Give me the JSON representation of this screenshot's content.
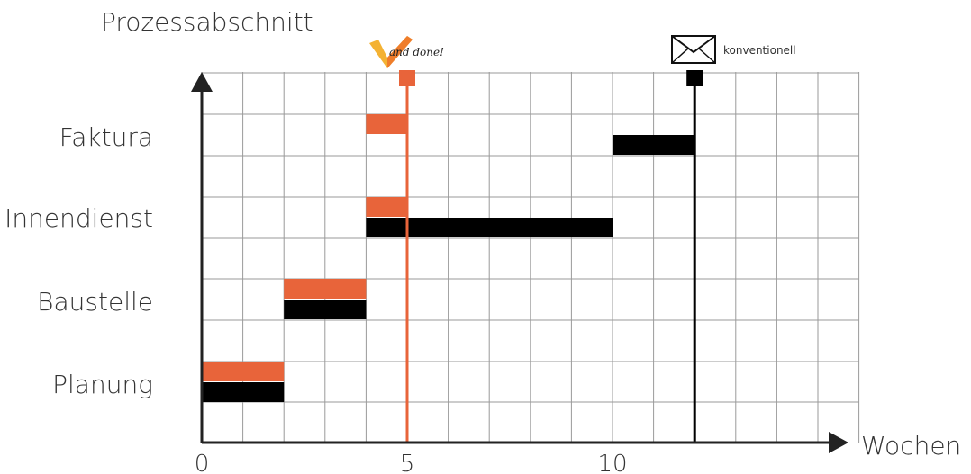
{
  "chart_data": {
    "type": "gantt",
    "y_axis_title": "Prozessabschnitt",
    "x_axis_title": "Wochen",
    "x_ticks": [
      0,
      5,
      10
    ],
    "xlim": [
      0,
      15
    ],
    "grid": true,
    "categories": [
      "Planung",
      "Baustelle",
      "Innendienst",
      "Faktura"
    ],
    "series": [
      {
        "color": "#e8643a",
        "tasks": [
          {
            "category": "Planung",
            "start": 0,
            "end": 2
          },
          {
            "category": "Baustelle",
            "start": 2,
            "end": 4
          },
          {
            "category": "Innendienst",
            "start": 4,
            "end": 5
          },
          {
            "category": "Faktura",
            "start": 4,
            "end": 5
          }
        ]
      },
      {
        "color": "#000000",
        "tasks": [
          {
            "category": "Planung",
            "start": 0,
            "end": 2
          },
          {
            "category": "Baustelle",
            "start": 2,
            "end": 4
          },
          {
            "category": "Innendienst",
            "start": 4,
            "end": 10
          },
          {
            "category": "Faktura",
            "start": 10,
            "end": 12
          }
        ]
      }
    ],
    "markers": [
      {
        "label": "and done!",
        "x": 5,
        "color": "#e8643a",
        "icon": "checkmark-logo-icon"
      },
      {
        "label": "konventionell",
        "x": 12,
        "color": "#000000",
        "icon": "envelope-icon"
      }
    ]
  }
}
